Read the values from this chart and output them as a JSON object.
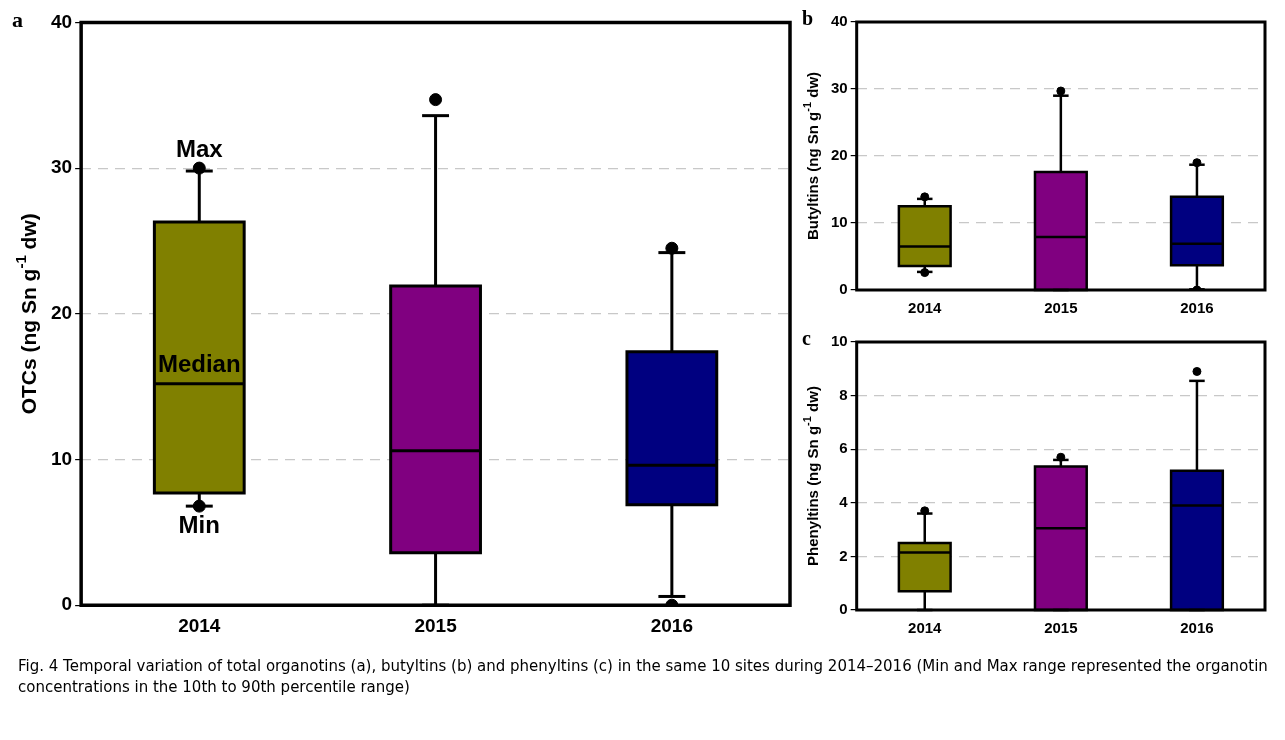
{
  "chart_data": [
    {
      "type": "box",
      "title": "a",
      "ylabel": "OTCs (ng Sn g$^{-1}$ dw)",
      "categories": [
        "2014",
        "2015",
        "2016"
      ],
      "colors": [
        "#808000",
        "#800080",
        "#000080"
      ],
      "ylim": [
        0,
        40
      ],
      "yticks": [
        0,
        10,
        20,
        30,
        40
      ],
      "grid": "y",
      "boxes": [
        {
          "low": 6.8,
          "q1": 7.7,
          "median": 15.2,
          "q3": 26.3,
          "high": 29.8,
          "outliers": [
            30.0,
            6.8
          ]
        },
        {
          "low": 0,
          "q1": 3.6,
          "median": 10.6,
          "q3": 21.9,
          "high": 33.6,
          "outliers": [
            34.7
          ]
        },
        {
          "low": 0.6,
          "q1": 6.9,
          "median": 9.6,
          "q3": 17.4,
          "high": 24.2,
          "outliers": [
            24.5,
            0.0
          ]
        }
      ],
      "annotations": [
        {
          "text": "Max",
          "x": "2014",
          "y": 30.0
        },
        {
          "text": "Median",
          "x": "2014",
          "y": 15.2
        },
        {
          "text": "Min",
          "x": "2014",
          "y": 6.8
        },
        "Fig. 4  Temporal variation of total organotins (a), butyltins (b) and phenyltins (c) in the same 10 sites during 2014–2016 (Min and Max range represented the organotin concentrations in the 10th to 90th percentile range)"
      ]
    },
    {
      "type": "box",
      "title": "b",
      "ylabel": "Butyltins (ng Sn g$^{-1}$ dw)",
      "categories": [
        "2014",
        "2015",
        "2016"
      ],
      "colors": [
        "#808000",
        "#800080",
        "#000080"
      ],
      "ylim": [
        0,
        40
      ],
      "yticks": [
        0,
        10,
        20,
        30,
        40
      ],
      "grid": "y",
      "boxes": [
        {
          "low": 2.7,
          "q1": 3.6,
          "median": 6.5,
          "q3": 12.5,
          "high": 13.6,
          "outliers": [
            13.9,
            2.6
          ]
        },
        {
          "low": 0,
          "q1": 0,
          "median": 7.9,
          "q3": 17.6,
          "high": 29.0,
          "outliers": [
            29.7
          ]
        },
        {
          "low": 0.1,
          "q1": 3.7,
          "median": 6.9,
          "q3": 13.9,
          "high": 18.7,
          "outliers": [
            19.0,
            0.0
          ]
        }
      ]
    },
    {
      "type": "box",
      "title": "c",
      "ylabel": "Phenyltins (ng Sn g$^{-1}$ dw)",
      "categories": [
        "2014",
        "2015",
        "2016"
      ],
      "colors": [
        "#808000",
        "#800080",
        "#000080"
      ],
      "ylim": [
        0,
        10
      ],
      "yticks": [
        0,
        2,
        4,
        6,
        8,
        10
      ],
      "grid": "y",
      "boxes": [
        {
          "low": 0,
          "q1": 0.7,
          "median": 2.15,
          "q3": 2.5,
          "high": 3.6,
          "outliers": [
            3.7
          ]
        },
        {
          "low": 0,
          "q1": 0,
          "median": 3.05,
          "q3": 5.35,
          "high": 5.6,
          "outliers": [
            5.7
          ]
        },
        {
          "low": 0,
          "q1": 0,
          "median": 3.9,
          "q3": 5.2,
          "high": 8.55,
          "outliers": [
            8.9
          ]
        }
      ]
    }
  ]
}
